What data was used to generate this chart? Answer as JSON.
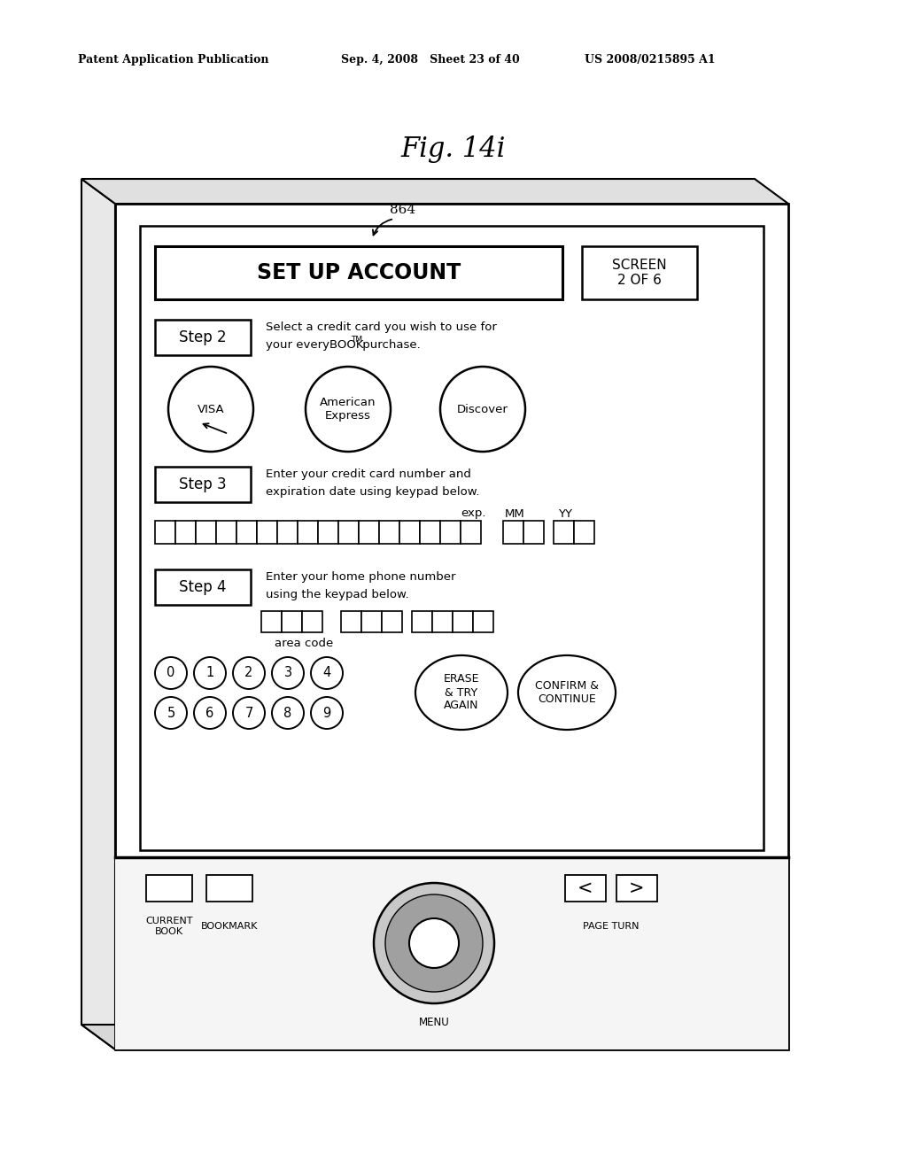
{
  "bg_color": "#ffffff",
  "header_left": "Patent Application Publication",
  "header_mid": "Sep. 4, 2008   Sheet 23 of 40",
  "header_right": "US 2008/0215895 A1",
  "fig_title": "Fig. 14i",
  "label_864": "864",
  "title_main": "SET UP ACCOUNT",
  "title_screen": "SCREEN\n2 OF 6",
  "step2_label": "Step 2",
  "step3_label": "Step 3",
  "step4_label": "Step 4",
  "cc_buttons": [
    "VISA",
    "American\nExpress",
    "Discover"
  ],
  "keypad_digits_row1": [
    "0",
    "1",
    "2",
    "3",
    "4"
  ],
  "keypad_digits_row2": [
    "5",
    "6",
    "7",
    "8",
    "9"
  ],
  "erase_label": "ERASE\n& TRY\nAGAIN",
  "confirm_label": "CONFIRM &\nCONTINUE",
  "exp_label": "exp.",
  "mm_label": "MM",
  "yy_label": "YY",
  "area_code_label": "area code",
  "current_book_label": "CURRENT\nBOOK",
  "bookmark_label": "BOOKMARK",
  "menu_label": "MENU",
  "page_turn_label": "PAGE TURN"
}
